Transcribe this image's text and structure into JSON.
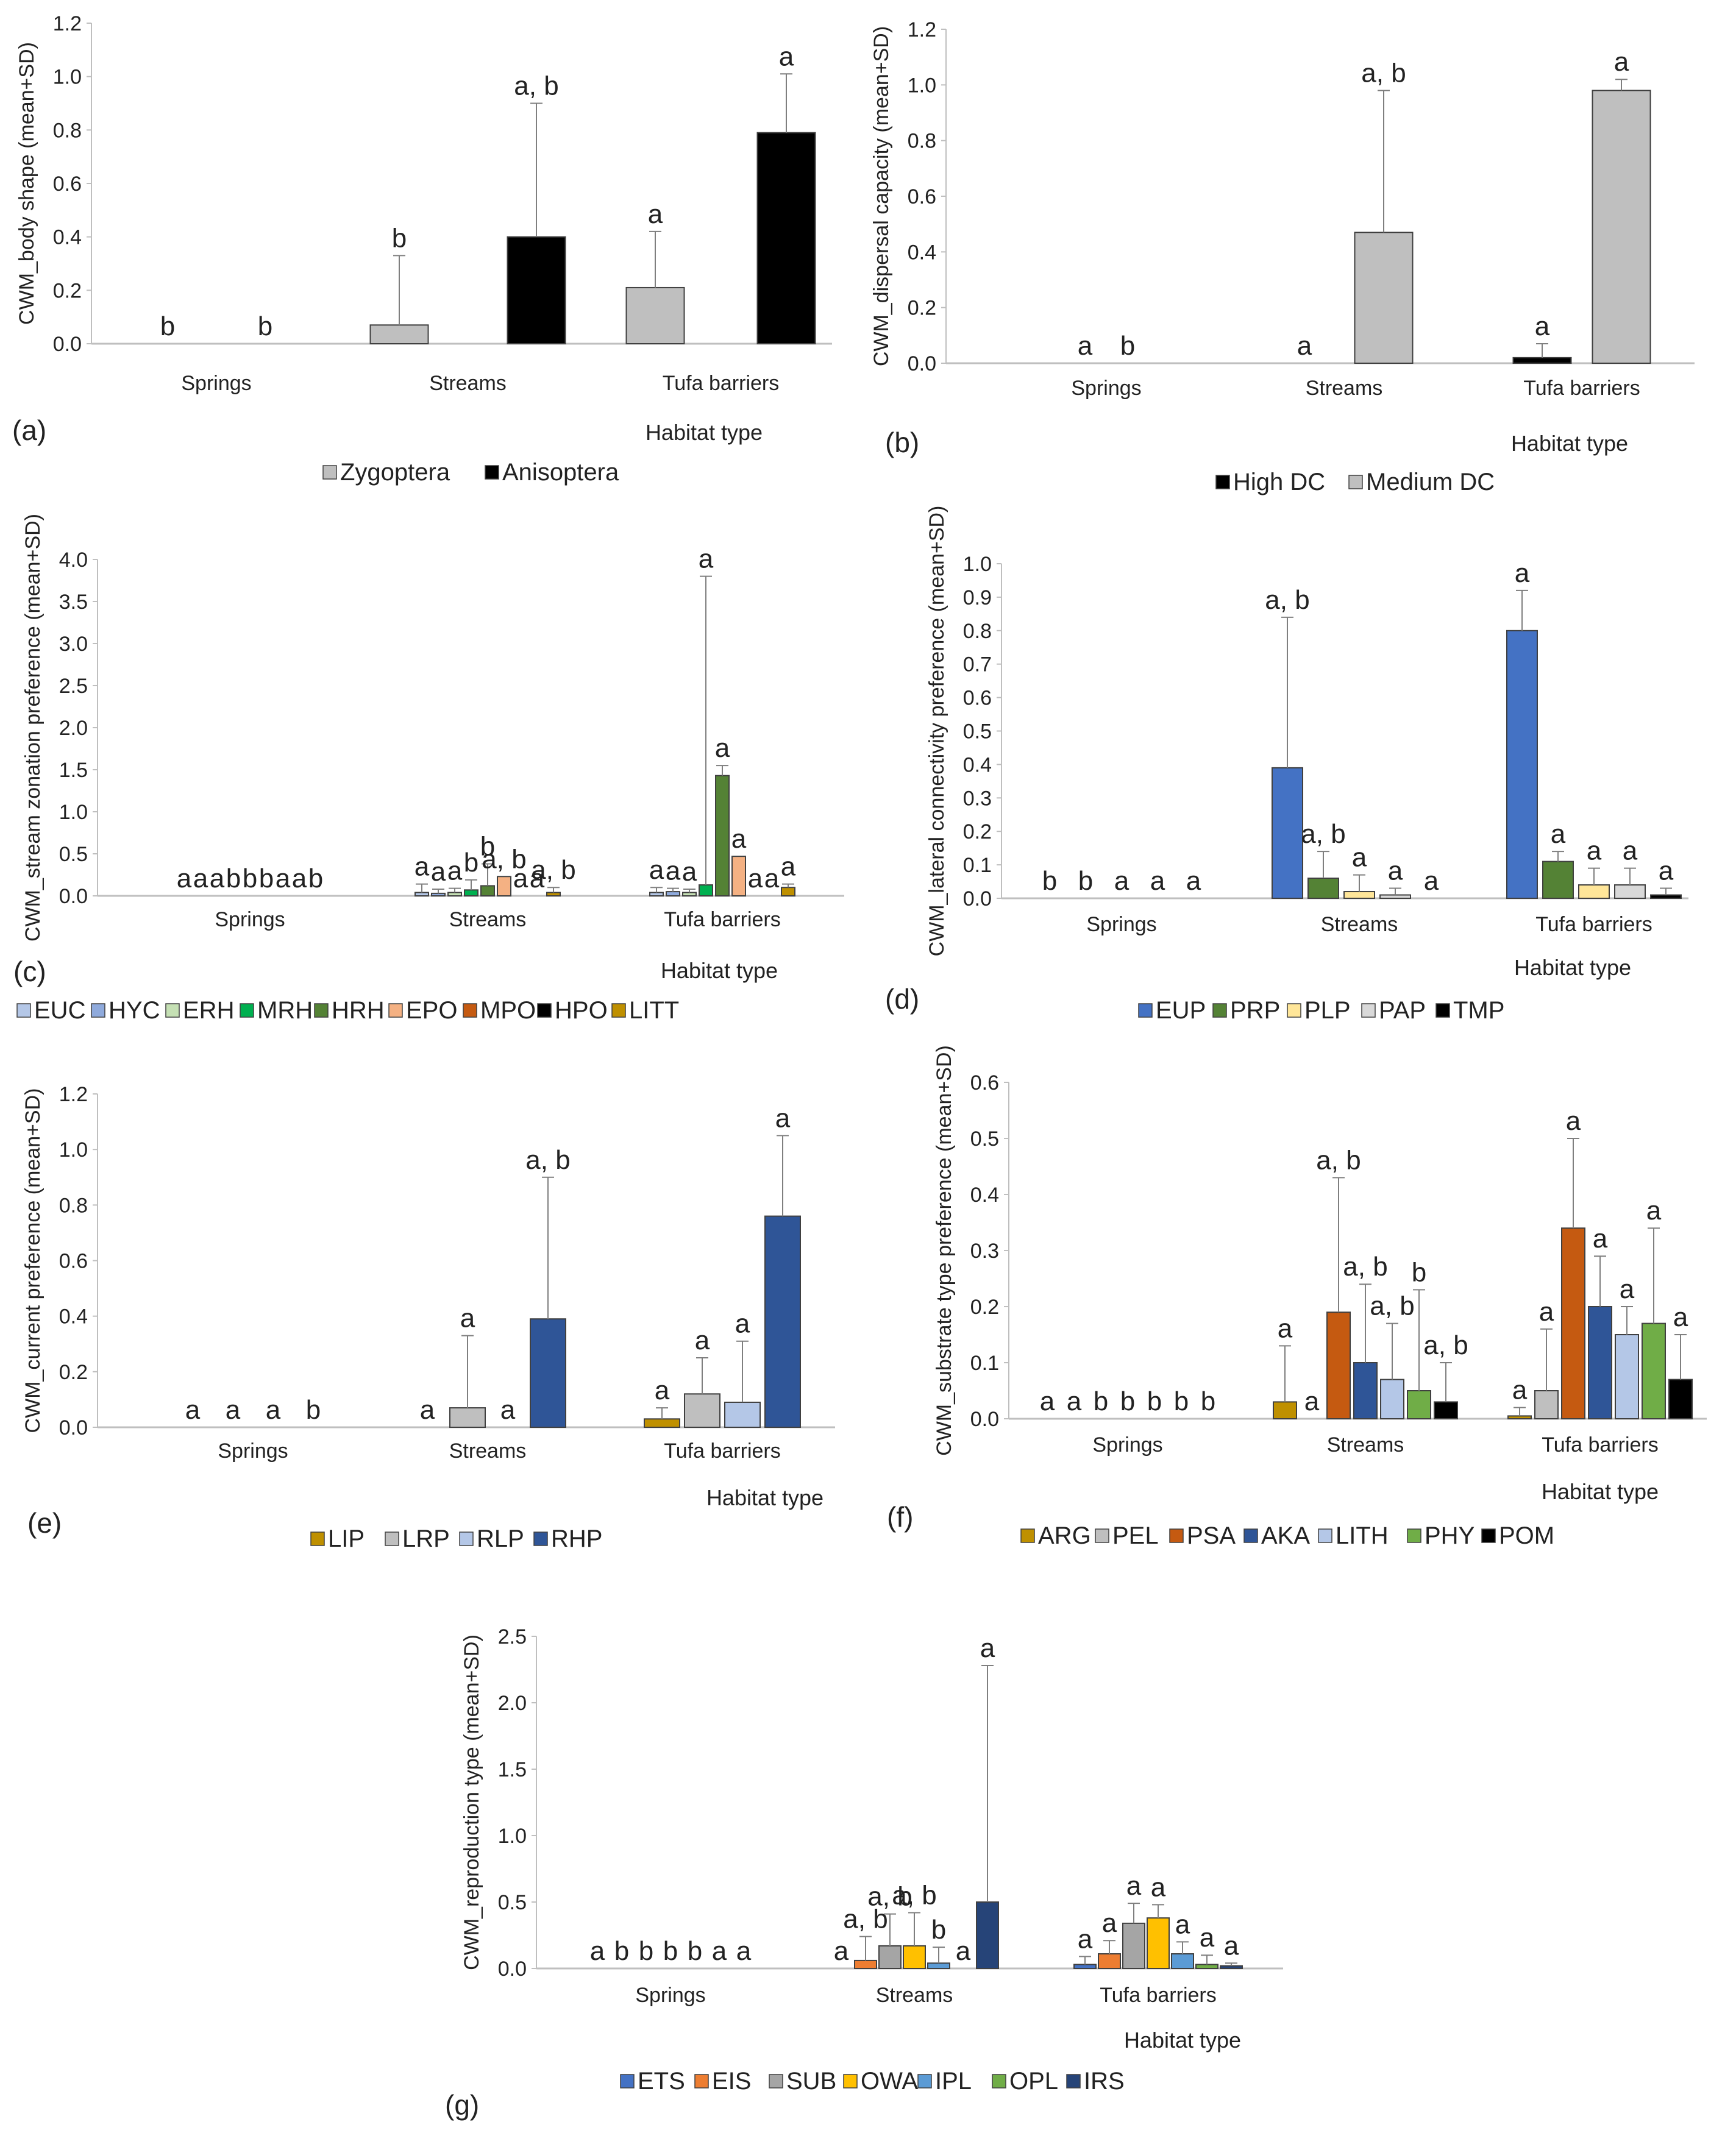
{
  "figure_labels": [
    "(a)",
    "(b)",
    "(c)",
    "(d)",
    "(e)",
    "(f)",
    "(g)"
  ],
  "colors": {
    "ETS": "#4472c4",
    "EIS": "#ed7d31",
    "SUB": "#a5a5a5",
    "OWA": "#ffc000",
    "IPL": "#5b9bd5",
    "OPL": "#70ad47",
    "IRS": "#264478",
    "EUC": "#b4c7e7",
    "HYC": "#8faadc",
    "ERH": "#c5e0b4",
    "MRH": "#00b050",
    "HRH": "#548235",
    "EPO": "#f4b183",
    "MPO": "#c55a11",
    "HPO": "#000000",
    "LITT": "#bf9000"
  },
  "chart_data": [
    {
      "id": "a",
      "type": "bar",
      "title": "",
      "ylabel": "CWM_body shape (mean+SD)",
      "xlabel": "Habitat type",
      "ylim": [
        0,
        1.2
      ],
      "ytick_step": 0.2,
      "ytick_decimals": 1,
      "categories": [
        "Springs",
        "Streams",
        "Tufa barriers"
      ],
      "series": [
        {
          "name": "Zygoptera",
          "color": "#bfbfbf",
          "values": [
            0,
            0.07,
            0.21
          ],
          "sd": [
            0,
            0.26,
            0.21
          ],
          "letters": [
            "b",
            "b",
            "a"
          ]
        },
        {
          "name": "Anisoptera",
          "color": "#000000",
          "values": [
            0,
            0.4,
            0.79
          ],
          "sd": [
            0,
            0.5,
            0.22
          ],
          "letters": [
            "b",
            "a, b",
            "a"
          ]
        }
      ]
    },
    {
      "id": "b",
      "type": "bar",
      "title": "",
      "ylabel": "CWM_dispersal capacity (mean+SD)",
      "xlabel": "Habitat type",
      "ylim": [
        0,
        1.2
      ],
      "ytick_step": 0.2,
      "ytick_decimals": 1,
      "categories": [
        "Springs",
        "Streams",
        "Tufa barriers"
      ],
      "series": [
        {
          "name": "High DC",
          "color": "#000000",
          "values": [
            0,
            0,
            0.02
          ],
          "sd": [
            0,
            0,
            0.05
          ],
          "letters": [
            "a",
            "a",
            "a"
          ]
        },
        {
          "name": "Medium DC",
          "color": "#bfbfbf",
          "values": [
            0,
            0.47,
            0.98
          ],
          "sd": [
            0,
            0.51,
            0.04
          ],
          "letters": [
            "b",
            "a, b",
            "a"
          ]
        }
      ]
    },
    {
      "id": "c",
      "type": "bar",
      "title": "",
      "ylabel": "CWM_stream zonation preference (mean+SD)",
      "xlabel": "Habitat type",
      "ylim": [
        0,
        4.0
      ],
      "ytick_step": 0.5,
      "ytick_decimals": 1,
      "categories": [
        "Springs",
        "Streams",
        "Tufa barriers"
      ],
      "series": [
        {
          "name": "EUC",
          "color": "#b4c7e7",
          "values": [
            0,
            0.04,
            0.04
          ],
          "sd": [
            0,
            0.1,
            0.06
          ],
          "letters": [
            "a",
            "a",
            "a"
          ]
        },
        {
          "name": "HYC",
          "color": "#8faadc",
          "values": [
            0,
            0.03,
            0.05
          ],
          "sd": [
            0,
            0.05,
            0.04
          ],
          "letters": [
            "a",
            "a",
            "a"
          ]
        },
        {
          "name": "ERH",
          "color": "#c5e0b4",
          "values": [
            0,
            0.04,
            0.04
          ],
          "sd": [
            0,
            0.05,
            0.04
          ],
          "letters": [
            "a",
            "a",
            "a"
          ]
        },
        {
          "name": "MRH",
          "color": "#00b050",
          "values": [
            0,
            0.07,
            0.13
          ],
          "sd": [
            0,
            0.12,
            3.67
          ],
          "letters": [
            "b",
            "b",
            "a"
          ]
        },
        {
          "name": "HRH",
          "color": "#548235",
          "values": [
            0,
            0.12,
            1.43
          ],
          "sd": [
            0,
            0.26,
            0.12
          ],
          "letters": [
            "b",
            "b",
            "a"
          ]
        },
        {
          "name": "EPO",
          "color": "#f4b183",
          "values": [
            0,
            0.23,
            0.47
          ],
          "sd": [
            0,
            0,
            0
          ],
          "letters": [
            "b",
            "a, b",
            "a"
          ]
        },
        {
          "name": "MPO",
          "color": "#c55a11",
          "values": [
            0,
            0,
            0
          ],
          "sd": [
            0,
            0,
            0
          ],
          "letters": [
            "a",
            "a",
            "a"
          ]
        },
        {
          "name": "HPO",
          "color": "#000000",
          "values": [
            0,
            0,
            0
          ],
          "sd": [
            0,
            0,
            0
          ],
          "letters": [
            "a",
            "a",
            "a"
          ]
        },
        {
          "name": "LITT",
          "color": "#bf9000",
          "values": [
            0,
            0.04,
            0.1
          ],
          "sd": [
            0,
            0.06,
            0.04
          ],
          "letters": [
            "b",
            "a, b",
            "a"
          ]
        }
      ]
    },
    {
      "id": "d",
      "type": "bar",
      "title": "",
      "ylabel": "CWM_lateral connectivity preference (mean+SD)",
      "xlabel": "Habitat type",
      "ylim": [
        0,
        1.0
      ],
      "ytick_step": 0.1,
      "ytick_decimals": 1,
      "categories": [
        "Springs",
        "Streams",
        "Tufa barriers"
      ],
      "series": [
        {
          "name": "EUP",
          "color": "#4472c4",
          "values": [
            0,
            0.39,
            0.8
          ],
          "sd": [
            0,
            0.45,
            0.12
          ],
          "letters": [
            "b",
            "a, b",
            "a"
          ]
        },
        {
          "name": "PRP",
          "color": "#548235",
          "values": [
            0,
            0.06,
            0.11
          ],
          "sd": [
            0,
            0.08,
            0.03
          ],
          "letters": [
            "b",
            "a, b",
            "a"
          ]
        },
        {
          "name": "PLP",
          "color": "#ffe699",
          "values": [
            0,
            0.02,
            0.04
          ],
          "sd": [
            0,
            0.05,
            0.05
          ],
          "letters": [
            "a",
            "a",
            "a"
          ]
        },
        {
          "name": "PAP",
          "color": "#d9d9d9",
          "values": [
            0,
            0.01,
            0.04
          ],
          "sd": [
            0,
            0.02,
            0.05
          ],
          "letters": [
            "a",
            "a",
            "a"
          ]
        },
        {
          "name": "TMP",
          "color": "#000000",
          "values": [
            0,
            0,
            0.01
          ],
          "sd": [
            0,
            0,
            0.02
          ],
          "letters": [
            "a",
            "a",
            "a"
          ]
        }
      ]
    },
    {
      "id": "e",
      "type": "bar",
      "title": "",
      "ylabel": "CWM_current preference (mean+SD)",
      "xlabel": "Habitat type",
      "ylim": [
        0,
        1.2
      ],
      "ytick_step": 0.2,
      "ytick_decimals": 1,
      "categories": [
        "Springs",
        "Streams",
        "Tufa barriers"
      ],
      "series": [
        {
          "name": "LIP",
          "color": "#bf9000",
          "values": [
            0,
            0,
            0.03
          ],
          "sd": [
            0,
            0,
            0.04
          ],
          "letters": [
            "a",
            "a",
            "a"
          ]
        },
        {
          "name": "LRP",
          "color": "#bfbfbf",
          "values": [
            0,
            0.07,
            0.12
          ],
          "sd": [
            0,
            0.26,
            0.13
          ],
          "letters": [
            "a",
            "a",
            "a"
          ]
        },
        {
          "name": "RLP",
          "color": "#b4c7e7",
          "values": [
            0,
            0,
            0.09
          ],
          "sd": [
            0,
            0,
            0.22
          ],
          "letters": [
            "a",
            "a",
            "a"
          ]
        },
        {
          "name": "RHP",
          "color": "#2f5597",
          "values": [
            0,
            0.39,
            0.76
          ],
          "sd": [
            0,
            0.51,
            0.29
          ],
          "letters": [
            "b",
            "a, b",
            "a"
          ]
        }
      ]
    },
    {
      "id": "f",
      "type": "bar",
      "title": "",
      "ylabel": "CWM_substrate type preference (mean+SD)",
      "xlabel": "Habitat type",
      "ylim": [
        0,
        0.6
      ],
      "ytick_step": 0.1,
      "ytick_decimals": 1,
      "categories": [
        "Springs",
        "Streams",
        "Tufa barriers"
      ],
      "series": [
        {
          "name": "ARG",
          "color": "#bf9000",
          "values": [
            0,
            0.03,
            0.005
          ],
          "sd": [
            0,
            0.1,
            0.015
          ],
          "letters": [
            "a",
            "a",
            "a"
          ]
        },
        {
          "name": "PEL",
          "color": "#bfbfbf",
          "values": [
            0,
            0,
            0.05
          ],
          "sd": [
            0,
            0,
            0.11
          ],
          "letters": [
            "a",
            "a",
            "a"
          ]
        },
        {
          "name": "PSA",
          "color": "#c55a11",
          "values": [
            0,
            0.19,
            0.34
          ],
          "sd": [
            0,
            0.24,
            0.16
          ],
          "letters": [
            "b",
            "a, b",
            "a"
          ]
        },
        {
          "name": "AKA",
          "color": "#2f5597",
          "values": [
            0,
            0.1,
            0.2
          ],
          "sd": [
            0,
            0.14,
            0.09
          ],
          "letters": [
            "b",
            "a, b",
            "a"
          ]
        },
        {
          "name": "LITH",
          "color": "#b4c7e7",
          "values": [
            0,
            0.07,
            0.15
          ],
          "sd": [
            0,
            0.1,
            0.05
          ],
          "letters": [
            "b",
            "a, b",
            "a"
          ]
        },
        {
          "name": "PHY",
          "color": "#70ad47",
          "values": [
            0,
            0.05,
            0.17
          ],
          "sd": [
            0,
            0.18,
            0.17
          ],
          "letters": [
            "b",
            "b",
            "a"
          ]
        },
        {
          "name": "POM",
          "color": "#000000",
          "values": [
            0,
            0.03,
            0.07
          ],
          "sd": [
            0,
            0.07,
            0.08
          ],
          "letters": [
            "b",
            "a, b",
            "a"
          ]
        }
      ]
    },
    {
      "id": "g",
      "type": "bar",
      "title": "",
      "ylabel": "CWM_reproduction type (mean+SD)",
      "xlabel": "Habitat type",
      "ylim": [
        0,
        2.5
      ],
      "ytick_step": 0.5,
      "ytick_decimals": 1,
      "categories": [
        "Springs",
        "Streams",
        "Tufa barriers"
      ],
      "series": [
        {
          "name": "ETS",
          "color": "#4472c4",
          "values": [
            0,
            0,
            0.03
          ],
          "sd": [
            0,
            0,
            0.06
          ],
          "letters": [
            "a",
            "a",
            "a"
          ]
        },
        {
          "name": "EIS",
          "color": "#ed7d31",
          "values": [
            0,
            0.06,
            0.11
          ],
          "sd": [
            0,
            0.18,
            0.1
          ],
          "letters": [
            "b",
            "a, b",
            "a"
          ]
        },
        {
          "name": "SUB",
          "color": "#a5a5a5",
          "values": [
            0,
            0.17,
            0.34
          ],
          "sd": [
            0,
            0.24,
            0.15
          ],
          "letters": [
            "b",
            "a, b",
            "a"
          ]
        },
        {
          "name": "OWA",
          "color": "#ffc000",
          "values": [
            0,
            0.17,
            0.38
          ],
          "sd": [
            0,
            0.25,
            0.1
          ],
          "letters": [
            "b",
            "a, b",
            "a"
          ]
        },
        {
          "name": "IPL",
          "color": "#5b9bd5",
          "values": [
            0,
            0.04,
            0.11
          ],
          "sd": [
            0,
            0.12,
            0.09
          ],
          "letters": [
            "b",
            "b",
            "a"
          ]
        },
        {
          "name": "OPL",
          "color": "#70ad47",
          "values": [
            0,
            0,
            0.03
          ],
          "sd": [
            0,
            0,
            0.07
          ],
          "letters": [
            "a",
            "a",
            "a"
          ]
        },
        {
          "name": "IRS",
          "color": "#264478",
          "values": [
            0,
            0.5,
            0.02
          ],
          "sd": [
            0,
            1.78,
            0.02
          ],
          "letters": [
            "a",
            "a",
            "a"
          ]
        }
      ]
    }
  ]
}
